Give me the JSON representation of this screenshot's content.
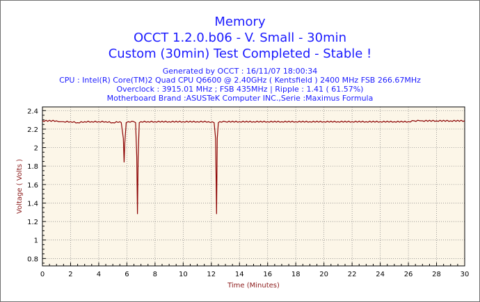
{
  "chart_data": {
    "type": "line",
    "title": [
      "Memory",
      "OCCT 1.2.0.b06 - V. Small - 30min",
      "Custom (30min) Test Completed - Stable !"
    ],
    "info": [
      "Generated by OCCT : 16/11/07 18:00:34",
      "CPU : Intel(R) Core(TM)2 Quad CPU Q6600 @ 2.40GHz ( Kentsfield ) 2400 MHz FSB 266.67MHz",
      "Overclock : 3915.01 MHz ; FSB 435MHz | Ripple : 1.41 ( 61.57%)",
      "Motherboard Brand :ASUSTeK Computer INC.,Serie :Maximus Formula"
    ],
    "xlabel": "Time (Minutes)",
    "ylabel": "Voltage ( Volts )",
    "xlim": [
      0,
      30
    ],
    "ylim": [
      0.72,
      2.44
    ],
    "x_ticks": [
      0,
      2,
      4,
      6,
      8,
      10,
      12,
      14,
      16,
      18,
      20,
      22,
      24,
      26,
      28,
      30
    ],
    "y_ticks": [
      0.8,
      1,
      1.2,
      1.4,
      1.6,
      1.8,
      2,
      2.2,
      2.4
    ],
    "grid": true,
    "colors": {
      "line": "#8b0000",
      "plot_background": "#fcf6e8",
      "grid": "#7a7a7a",
      "text": "#1a1aff",
      "axis_label": "#8b1a1a"
    },
    "series": [
      {
        "x": [
          0,
          1.0,
          1.3,
          1.5,
          2.0,
          2.5,
          3.0,
          3.5,
          4.0,
          4.5,
          5.0,
          5.5,
          5.6,
          5.75,
          5.8,
          5.85,
          5.95,
          6.1,
          6.5,
          6.62,
          6.7,
          6.75,
          6.8,
          6.88,
          7.0,
          7.5,
          8.0,
          9.0,
          10.0,
          11.0,
          11.8,
          12.2,
          12.3,
          12.37,
          12.42,
          12.5,
          12.6,
          13.0,
          14.0,
          15.0,
          16.0,
          17.0,
          18.0,
          19.0,
          20.0,
          21.0,
          22.0,
          23.0,
          24.0,
          25.0,
          26.0,
          26.4,
          26.8,
          27.0,
          28.0,
          29.0,
          30.0
        ],
        "y": [
          2.29,
          2.29,
          2.28,
          2.28,
          2.28,
          2.27,
          2.28,
          2.28,
          2.28,
          2.28,
          2.27,
          2.28,
          2.27,
          2.1,
          1.84,
          2.05,
          2.27,
          2.28,
          2.28,
          2.27,
          1.9,
          1.28,
          1.9,
          2.27,
          2.28,
          2.28,
          2.28,
          2.28,
          2.28,
          2.28,
          2.28,
          2.27,
          2.1,
          1.28,
          2.1,
          2.27,
          2.28,
          2.28,
          2.28,
          2.28,
          2.28,
          2.28,
          2.28,
          2.28,
          2.28,
          2.28,
          2.28,
          2.28,
          2.28,
          2.28,
          2.28,
          2.29,
          2.29,
          2.29,
          2.29,
          2.29,
          2.29
        ]
      }
    ]
  }
}
